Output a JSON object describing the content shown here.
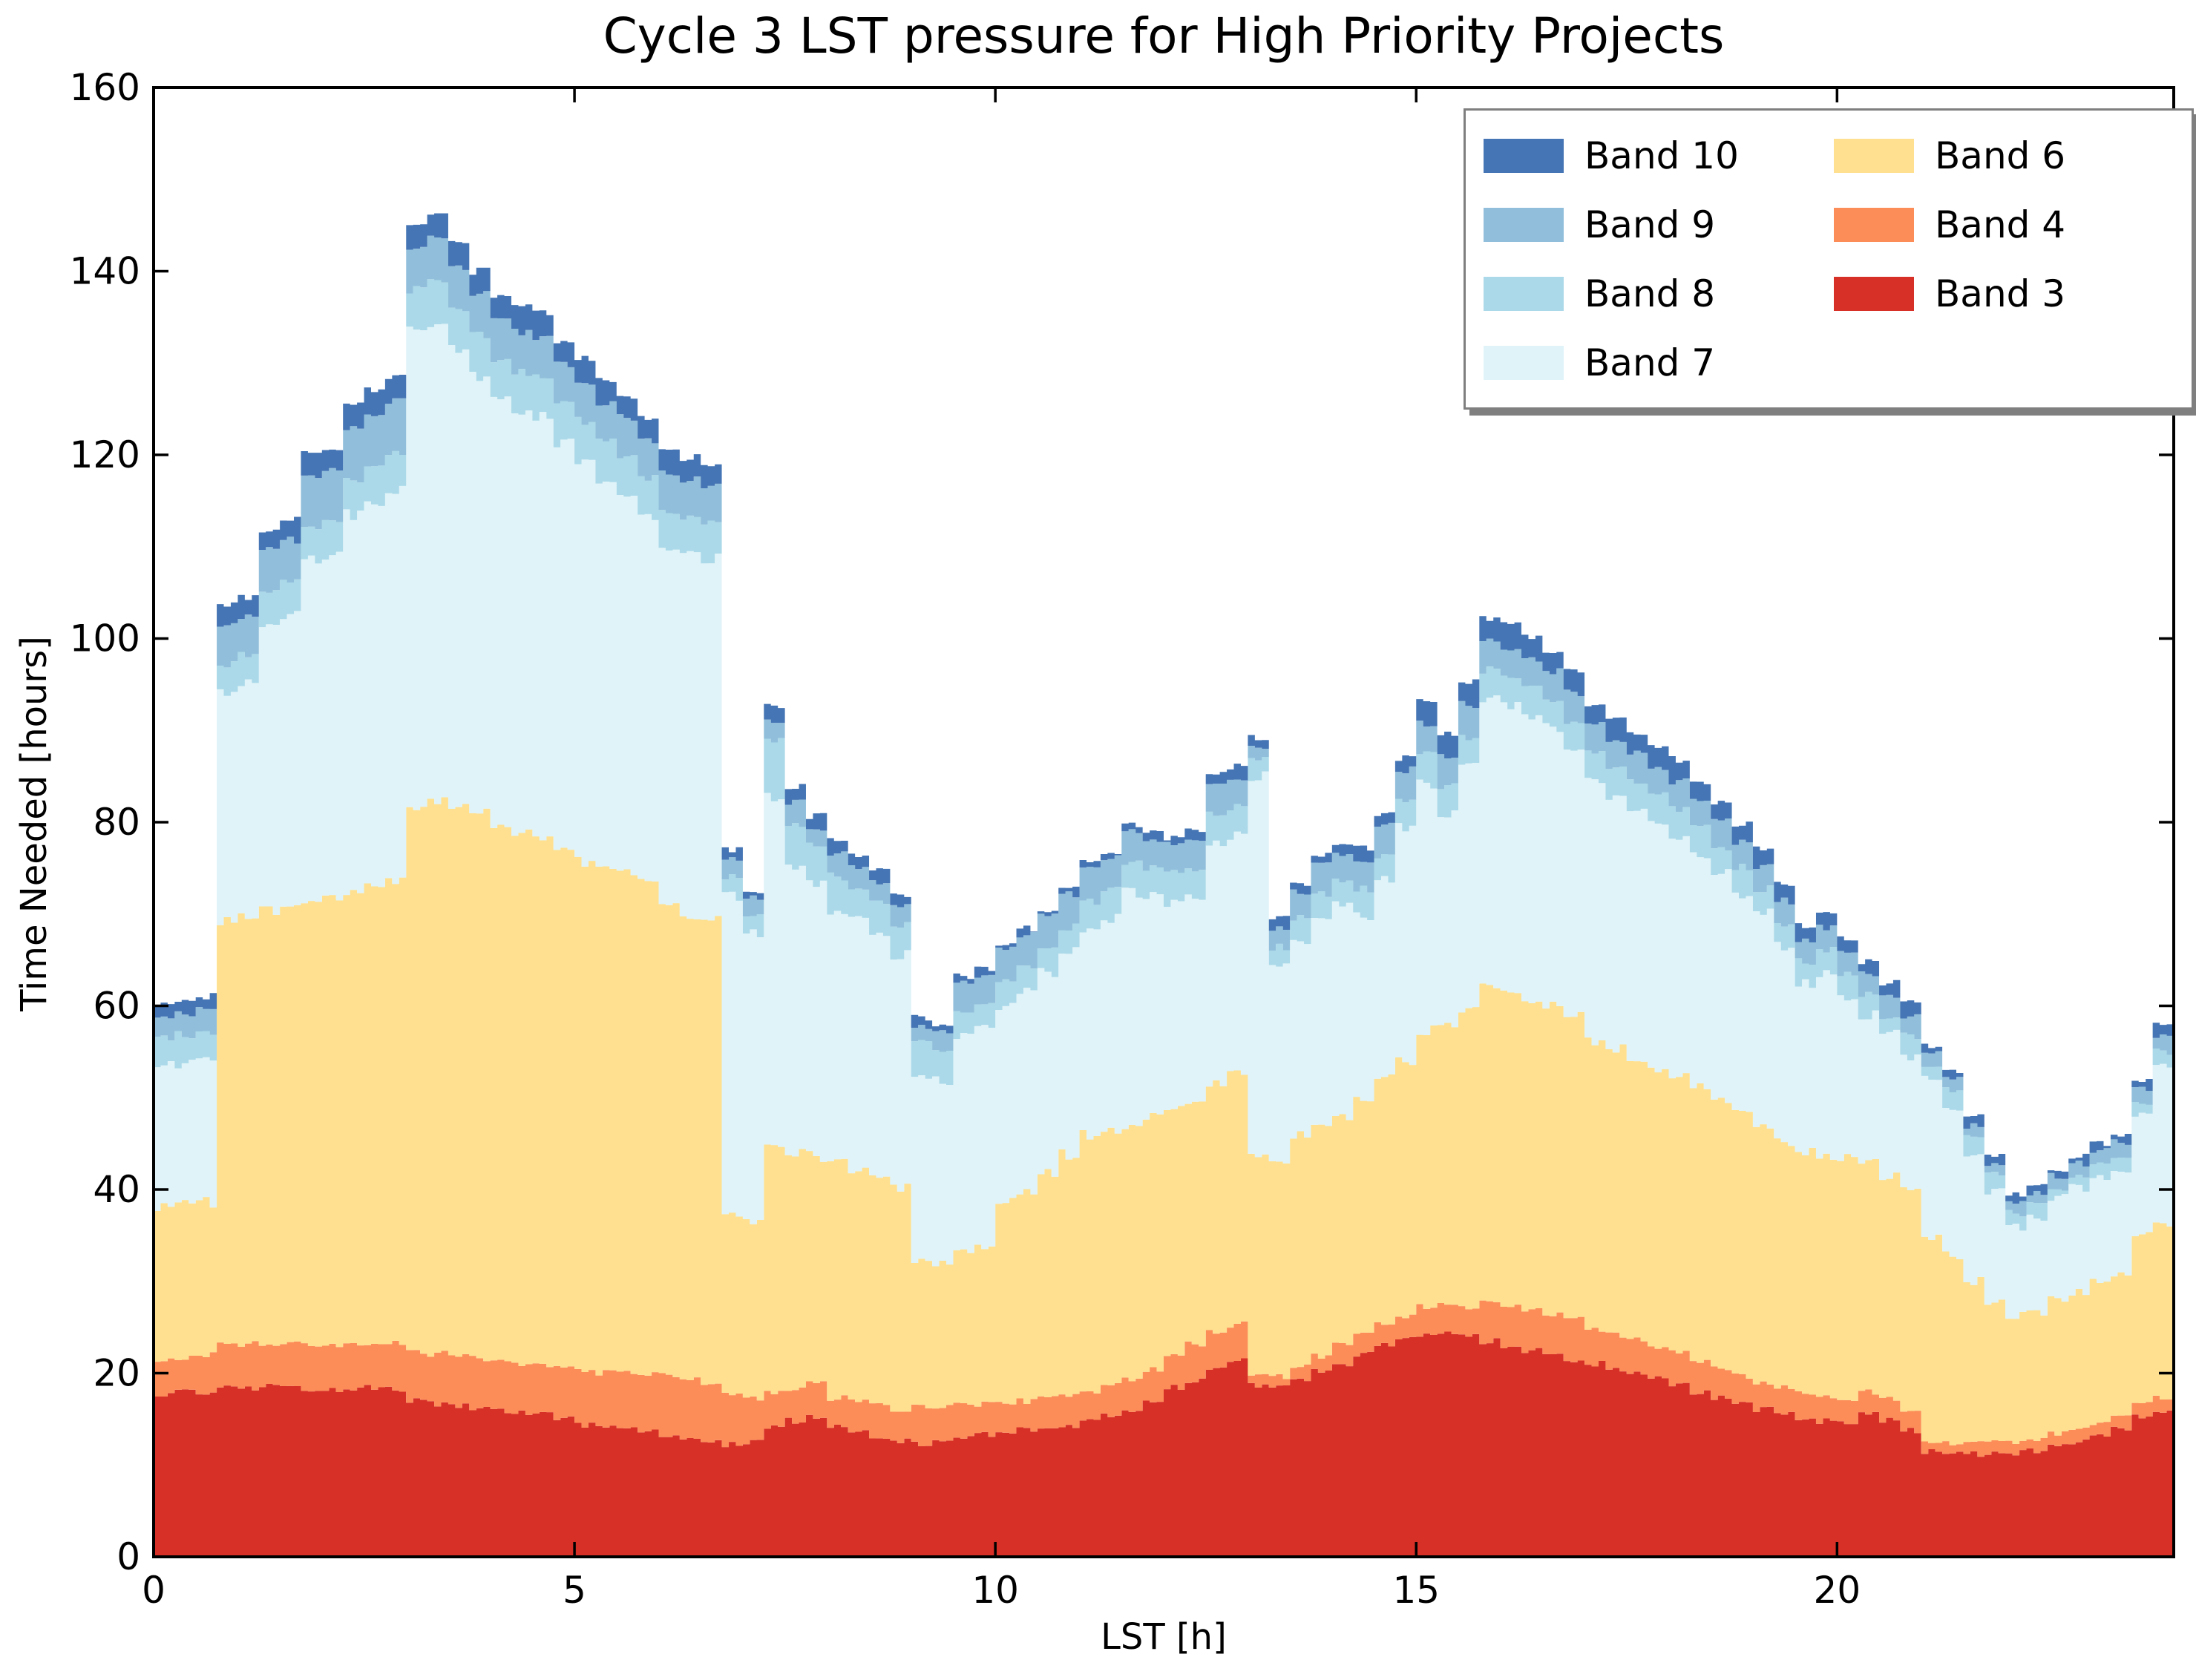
{
  "chart_data": {
    "type": "area",
    "stacked": true,
    "title": "Cycle 3 LST pressure for High Priority Projects",
    "xlabel": "LST [h]",
    "ylabel": "Time Needed [hours]",
    "xlim": [
      0,
      24
    ],
    "ylim": [
      0,
      160
    ],
    "xticks": [
      0,
      5,
      10,
      15,
      20
    ],
    "yticks": [
      0,
      20,
      40,
      60,
      80,
      100,
      120,
      140,
      160
    ],
    "grid": false,
    "legend_position": "upper right",
    "legend_columns": 2,
    "legend_order": [
      "Band 10",
      "Band 9",
      "Band 8",
      "Band 7",
      "Band 6",
      "Band 4",
      "Band 3"
    ],
    "x": [
      0,
      0.25,
      0.5,
      0.75,
      1,
      1.25,
      1.5,
      1.75,
      2,
      2.25,
      2.5,
      2.75,
      3,
      3.25,
      3.5,
      3.75,
      4,
      4.25,
      4.5,
      4.75,
      5,
      5.25,
      5.5,
      5.75,
      6,
      6.25,
      6.5,
      6.75,
      7,
      7.25,
      7.5,
      7.75,
      8,
      8.25,
      8.5,
      8.75,
      9,
      9.25,
      9.5,
      9.75,
      10,
      10.25,
      10.5,
      10.75,
      11,
      11.25,
      11.5,
      11.75,
      12,
      12.25,
      12.5,
      12.75,
      13,
      13.25,
      13.5,
      13.75,
      14,
      14.25,
      14.5,
      14.75,
      15,
      15.25,
      15.5,
      15.75,
      16,
      16.25,
      16.5,
      16.75,
      17,
      17.25,
      17.5,
      17.75,
      18,
      18.25,
      18.5,
      18.75,
      19,
      19.25,
      19.5,
      19.75,
      20,
      20.25,
      20.5,
      20.75,
      21,
      21.25,
      21.5,
      21.75,
      22,
      22.25,
      22.5,
      22.75,
      23,
      23.25,
      23.5,
      23.75,
      24
    ],
    "series": [
      {
        "name": "Band 3",
        "color": "#d73027",
        "values": [
          17.8,
          17.9,
          18,
          18.4,
          18.4,
          18.5,
          18.5,
          18.3,
          18.2,
          18.2,
          18.4,
          18.3,
          17,
          16.6,
          16.4,
          16,
          15.8,
          15.6,
          15.5,
          15,
          14.4,
          14.2,
          13.9,
          13.6,
          13.3,
          12.9,
          12.5,
          12.3,
          12.5,
          14,
          14.8,
          15.3,
          14.2,
          13.6,
          13.1,
          12.6,
          12.2,
          12.4,
          13,
          13.3,
          13.5,
          13.8,
          14,
          14.3,
          14.7,
          15.4,
          16.1,
          17,
          18.5,
          19.2,
          20.5,
          21.5,
          18.7,
          18.4,
          19.4,
          20.2,
          21,
          22,
          23.1,
          23.9,
          24.2,
          24.6,
          24,
          23.5,
          23,
          22.5,
          22,
          21.5,
          21,
          20.5,
          20,
          19.4,
          18.8,
          18,
          17.3,
          16.6,
          16,
          15.5,
          15.1,
          14.8,
          14.6,
          15.8,
          14.9,
          13.8,
          11.5,
          11.3,
          11.2,
          11.2,
          11.3,
          11.5,
          12,
          12.5,
          13.2,
          14,
          15.3,
          15.6,
          15.8
        ]
      },
      {
        "name": "Band 4",
        "color": "#fc8d59",
        "values": [
          3.7,
          3.8,
          4,
          4.7,
          4.8,
          4.8,
          4.9,
          4.9,
          4.9,
          4.8,
          4.9,
          4.9,
          5.3,
          5.5,
          5.6,
          5.6,
          5.5,
          5.5,
          5.5,
          5.7,
          5.9,
          5.9,
          6.1,
          6.3,
          6.4,
          6.3,
          6.2,
          5.3,
          4.8,
          3.8,
          3.4,
          3.6,
          3.1,
          3.3,
          3.3,
          3.3,
          4.1,
          3.8,
          3.5,
          3.3,
          3.3,
          3.2,
          3.2,
          3.2,
          3.1,
          3.2,
          3.3,
          3.4,
          3.5,
          4,
          4.1,
          3.8,
          1.3,
          1.2,
          1.5,
          1.7,
          2,
          2.2,
          2.3,
          2.4,
          3,
          3.1,
          3.3,
          4.4,
          4.5,
          4.5,
          4.4,
          4.3,
          3.8,
          3.7,
          3.6,
          3.6,
          3.4,
          3.3,
          3.2,
          3.1,
          3,
          2.9,
          2.8,
          2.7,
          2.6,
          2.2,
          2.2,
          2.3,
          1.1,
          1.1,
          1.1,
          1.2,
          1.3,
          1.4,
          1.4,
          1.4,
          1.2,
          1.1,
          1.6,
          1.8,
          2.1
        ]
      },
      {
        "name": "Band 6",
        "color": "#fee090",
        "values": [
          16.7,
          16.7,
          16.6,
          46,
          46.3,
          47,
          47.4,
          48.3,
          48.9,
          49.6,
          49.9,
          50.6,
          59.5,
          60.1,
          59.6,
          59.4,
          58.5,
          57.9,
          57.6,
          56.5,
          55.4,
          54.9,
          54.3,
          53.4,
          50.9,
          50.6,
          50.5,
          19.7,
          19.5,
          26.7,
          25.8,
          24.7,
          25.7,
          25.3,
          24.8,
          24.2,
          16.3,
          16,
          17.1,
          17.4,
          22,
          23,
          24.6,
          26.3,
          28.2,
          27.8,
          27.5,
          27.5,
          26.9,
          26.6,
          27,
          27.2,
          23.7,
          23.8,
          25,
          25,
          24.9,
          25.7,
          26.6,
          27.5,
          30.1,
          30.3,
          32.2,
          34,
          34,
          33.8,
          33.6,
          33,
          31.4,
          31,
          30.6,
          30.3,
          30.2,
          29.7,
          29.1,
          28.5,
          27.5,
          26.8,
          26.1,
          25.9,
          26.1,
          25,
          24.5,
          23.9,
          22.4,
          20.6,
          17.7,
          15.4,
          13.6,
          13.9,
          14.9,
          15.1,
          15.4,
          15.9,
          18.1,
          18.9,
          19.6
        ]
      },
      {
        "name": "Band 7",
        "color": "#e0f3f8",
        "values": [
          15.2,
          15.3,
          15.4,
          25.1,
          25.5,
          31.2,
          31.7,
          37,
          37,
          40.9,
          41.6,
          42.4,
          51.7,
          52.3,
          49.9,
          47.5,
          46.2,
          45.6,
          45.5,
          44.1,
          43.8,
          42.2,
          41.5,
          40.1,
          39.4,
          39.5,
          39.5,
          34.7,
          31,
          38.3,
          30.8,
          29.9,
          27.5,
          27.1,
          26.6,
          25.4,
          19.7,
          19.6,
          23.2,
          23.5,
          21.2,
          21.5,
          21.8,
          22,
          22.3,
          23.1,
          25.4,
          23.9,
          22.4,
          22,
          26.2,
          26.1,
          41.3,
          21.1,
          21.2,
          22.9,
          23,
          20,
          21.8,
          25.7,
          26.9,
          23,
          26.5,
          31.6,
          31.3,
          30.7,
          30.2,
          29.2,
          28.2,
          27.8,
          27.3,
          26.7,
          26.1,
          25.5,
          24.8,
          24.1,
          23.5,
          21.3,
          18.5,
          20.1,
          17.7,
          16,
          15.2,
          14.5,
          16.8,
          16,
          14,
          12.2,
          9.8,
          10.2,
          10.7,
          11.3,
          11.7,
          11.3,
          13,
          17.1,
          17.6
        ]
      },
      {
        "name": "Band 8",
        "color": "#abd9e9",
        "values": [
          3.1,
          3.2,
          3.2,
          3.1,
          3.1,
          3.5,
          3.6,
          3.8,
          3.8,
          3.9,
          3.9,
          3.9,
          4.5,
          4.5,
          4.5,
          4.5,
          4.4,
          4.4,
          4.4,
          4.3,
          4.2,
          4.2,
          4.2,
          4.1,
          4,
          4,
          4,
          2,
          2.1,
          6.3,
          5.1,
          3.9,
          3.6,
          3.5,
          3.4,
          3.3,
          3.7,
          3.6,
          2.7,
          2.8,
          2.8,
          2.8,
          2.8,
          2.8,
          3.1,
          3.1,
          3.1,
          3.1,
          3.1,
          3.1,
          3.1,
          3.1,
          1.8,
          1.9,
          2.4,
          2.5,
          2.6,
          2.8,
          2.7,
          2.8,
          3.1,
          3,
          3.2,
          3.1,
          3.2,
          3.2,
          3.1,
          3,
          3.1,
          3,
          3,
          3,
          3,
          2.9,
          2.9,
          2.8,
          2.7,
          2.5,
          2.4,
          2.5,
          2.3,
          2.2,
          2.1,
          2.2,
          1.7,
          1.7,
          1.6,
          1.5,
          1.5,
          1.3,
          1.3,
          1.3,
          1.4,
          1.4,
          1.5,
          1.6,
          1.7
        ]
      },
      {
        "name": "Band 9",
        "color": "#91bfdb",
        "values": [
          2.2,
          2.2,
          2.3,
          4.2,
          4.2,
          4.6,
          4.6,
          5.5,
          5.5,
          5.6,
          5.7,
          5.8,
          4.5,
          4.5,
          4.5,
          4.5,
          4.4,
          4.4,
          4.4,
          4.3,
          4.3,
          4.2,
          4.1,
          4.1,
          4.1,
          4,
          4,
          2.2,
          1.8,
          1.7,
          2.4,
          1.9,
          2.6,
          2.5,
          2.2,
          2.1,
          1.7,
          1.8,
          3.1,
          3.1,
          3.4,
          3.4,
          3.5,
          3.5,
          3.5,
          3.5,
          3.5,
          3.3,
          3.3,
          3.4,
          3.1,
          3.2,
          1.4,
          2,
          2.8,
          3,
          3.1,
          3.2,
          3.3,
          3.4,
          3.5,
          3.3,
          3.6,
          3.1,
          3.1,
          3.1,
          3.1,
          3.1,
          3.1,
          3,
          3,
          3,
          3,
          2.9,
          2.8,
          2.7,
          2.6,
          2.4,
          2.3,
          2.5,
          2.3,
          2.2,
          2.2,
          2.3,
          1.5,
          1.5,
          1.4,
          1.3,
          1.2,
          1.2,
          1.2,
          1.3,
          1.3,
          1.4,
          1.6,
          1.7,
          1.8
        ]
      },
      {
        "name": "Band 10",
        "color": "#4575b4",
        "values": [
          1.5,
          1.5,
          1.5,
          2.1,
          2.1,
          2.3,
          2.3,
          2.5,
          2.5,
          2.5,
          2.6,
          2.6,
          2.8,
          2.7,
          2.6,
          2.5,
          2.6,
          2.6,
          2.6,
          2.5,
          2.5,
          2.4,
          2.4,
          2.4,
          2.4,
          2.4,
          2.4,
          0.8,
          0.8,
          1.8,
          1.7,
          1.3,
          1.4,
          1.3,
          1.2,
          1.1,
          1,
          0.9,
          0.6,
          0.7,
          0.7,
          0.7,
          0.7,
          0.8,
          0.7,
          0.8,
          0.8,
          0.8,
          0.7,
          0.8,
          1.2,
          1.2,
          1,
          1.2,
          1.1,
          1.1,
          1.1,
          1.2,
          1.2,
          1.3,
          2.3,
          2.2,
          2.5,
          2.6,
          2.4,
          2.4,
          2.4,
          2.3,
          2.4,
          2.3,
          2.3,
          2.3,
          2.3,
          2.1,
          2.1,
          2,
          1.9,
          1.8,
          1.6,
          1.7,
          1.6,
          1.5,
          1.4,
          1.4,
          0.8,
          0.8,
          0.8,
          0.7,
          0.7,
          0.7,
          0.8,
          0.8,
          0.8,
          0.8,
          1,
          1.1,
          1.2
        ]
      }
    ]
  },
  "layout_colors": {
    "axis": "#000000",
    "legend_border": "#7f7f7f",
    "background": "#ffffff"
  }
}
